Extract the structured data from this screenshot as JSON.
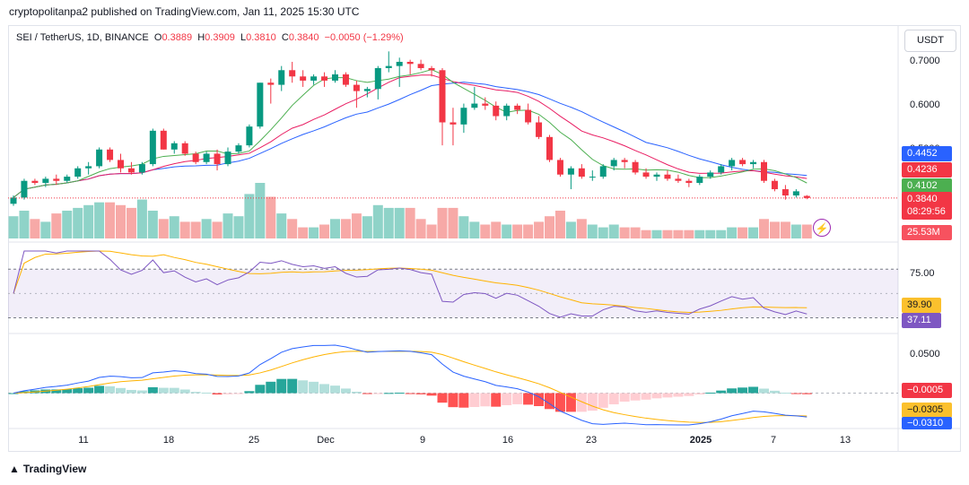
{
  "publisher": "cryptopolitanpa2 published on TradingView.com, Jan 11, 2025 15:30 UTC",
  "legend": {
    "symbol": "SEI / TetherUS, 1D, BINANCE",
    "open_label": "O",
    "open": "0.3889",
    "high_label": "H",
    "high": "0.3909",
    "low_label": "L",
    "low": "0.3810",
    "close_label": "C",
    "close": "0.3840",
    "change": "−0.0050 (−1.29%)"
  },
  "currency": "USDT",
  "price_ticks": [
    "0.7000",
    "0.6000",
    "0.5000"
  ],
  "badges": {
    "ma1": "0.4452",
    "ma2": "0.4236",
    "ma3": "0.4102",
    "last_price": "0.3840",
    "countdown": "08:29:56",
    "volume": "25.53M",
    "rsi_top": "75.00",
    "rsi_ma": "39.90",
    "rsi": "37.11",
    "macd_top": "0.0500",
    "hist": "−0.0005",
    "signal": "−0.0305",
    "macd": "−0.0310"
  },
  "x_ticks": [
    "11",
    "18",
    "25",
    "Dec",
    "9",
    "16",
    "23",
    "2025",
    "7",
    "13"
  ],
  "footer": "TradingView",
  "icons": {
    "flash": "lightning-icon",
    "logo": "tradingview-logo-icon"
  },
  "colors": {
    "up": "#089981",
    "down": "#f23645",
    "ma_blue": "#2962ff",
    "ma_red": "#e91e63",
    "ma_green": "#4caf50",
    "rsi": "#7e57c2",
    "signal": "#ffb300"
  },
  "chart_data": {
    "type": "candlestick",
    "symbol": "SEI / TetherUS",
    "interval": "1D",
    "candles": [
      [
        0.37,
        0.39,
        0.365,
        0.385
      ],
      [
        0.385,
        0.43,
        0.38,
        0.425
      ],
      [
        0.425,
        0.43,
        0.415,
        0.42
      ],
      [
        0.42,
        0.435,
        0.41,
        0.43
      ],
      [
        0.43,
        0.44,
        0.415,
        0.425
      ],
      [
        0.425,
        0.44,
        0.42,
        0.435
      ],
      [
        0.435,
        0.46,
        0.43,
        0.455
      ],
      [
        0.455,
        0.47,
        0.44,
        0.46
      ],
      [
        0.46,
        0.505,
        0.455,
        0.5
      ],
      [
        0.5,
        0.505,
        0.47,
        0.475
      ],
      [
        0.475,
        0.49,
        0.445,
        0.455
      ],
      [
        0.455,
        0.47,
        0.44,
        0.445
      ],
      [
        0.445,
        0.47,
        0.44,
        0.465
      ],
      [
        0.465,
        0.55,
        0.46,
        0.545
      ],
      [
        0.545,
        0.55,
        0.5,
        0.5
      ],
      [
        0.5,
        0.52,
        0.49,
        0.515
      ],
      [
        0.515,
        0.52,
        0.485,
        0.49
      ],
      [
        0.49,
        0.495,
        0.465,
        0.47
      ],
      [
        0.47,
        0.495,
        0.465,
        0.49
      ],
      [
        0.49,
        0.5,
        0.45,
        0.465
      ],
      [
        0.465,
        0.505,
        0.46,
        0.495
      ],
      [
        0.495,
        0.515,
        0.49,
        0.51
      ],
      [
        0.51,
        0.56,
        0.505,
        0.555
      ],
      [
        0.555,
        0.66,
        0.55,
        0.66
      ],
      [
        0.66,
        0.67,
        0.61,
        0.655
      ],
      [
        0.655,
        0.7,
        0.64,
        0.69
      ],
      [
        0.69,
        0.71,
        0.66,
        0.675
      ],
      [
        0.675,
        0.69,
        0.65,
        0.665
      ],
      [
        0.665,
        0.68,
        0.655,
        0.675
      ],
      [
        0.675,
        0.685,
        0.65,
        0.665
      ],
      [
        0.665,
        0.69,
        0.66,
        0.68
      ],
      [
        0.68,
        0.685,
        0.65,
        0.655
      ],
      [
        0.655,
        0.665,
        0.6,
        0.64
      ],
      [
        0.64,
        0.65,
        0.625,
        0.645
      ],
      [
        0.645,
        0.7,
        0.62,
        0.695
      ],
      [
        0.695,
        0.735,
        0.685,
        0.7
      ],
      [
        0.7,
        0.72,
        0.65,
        0.71
      ],
      [
        0.71,
        0.715,
        0.68,
        0.705
      ],
      [
        0.705,
        0.715,
        0.69,
        0.695
      ],
      [
        0.695,
        0.7,
        0.675,
        0.69
      ],
      [
        0.69,
        0.695,
        0.51,
        0.565
      ],
      [
        0.565,
        0.6,
        0.51,
        0.56
      ],
      [
        0.56,
        0.61,
        0.54,
        0.6
      ],
      [
        0.6,
        0.65,
        0.595,
        0.61
      ],
      [
        0.61,
        0.625,
        0.595,
        0.605
      ],
      [
        0.605,
        0.615,
        0.57,
        0.58
      ],
      [
        0.58,
        0.61,
        0.57,
        0.605
      ],
      [
        0.605,
        0.61,
        0.585,
        0.595
      ],
      [
        0.595,
        0.61,
        0.56,
        0.565
      ],
      [
        0.565,
        0.58,
        0.525,
        0.53
      ],
      [
        0.53,
        0.535,
        0.47,
        0.475
      ],
      [
        0.475,
        0.48,
        0.435,
        0.44
      ],
      [
        0.44,
        0.46,
        0.405,
        0.455
      ],
      [
        0.455,
        0.465,
        0.43,
        0.435
      ],
      [
        0.435,
        0.45,
        0.425,
        0.435
      ],
      [
        0.435,
        0.465,
        0.43,
        0.46
      ],
      [
        0.46,
        0.48,
        0.45,
        0.475
      ],
      [
        0.475,
        0.48,
        0.455,
        0.47
      ],
      [
        0.47,
        0.475,
        0.44,
        0.445
      ],
      [
        0.445,
        0.455,
        0.43,
        0.435
      ],
      [
        0.435,
        0.445,
        0.425,
        0.44
      ],
      [
        0.44,
        0.45,
        0.425,
        0.43
      ],
      [
        0.43,
        0.44,
        0.42,
        0.425
      ],
      [
        0.425,
        0.43,
        0.41,
        0.42
      ],
      [
        0.42,
        0.44,
        0.415,
        0.435
      ],
      [
        0.435,
        0.45,
        0.43,
        0.445
      ],
      [
        0.445,
        0.465,
        0.44,
        0.46
      ],
      [
        0.46,
        0.48,
        0.45,
        0.475
      ],
      [
        0.475,
        0.48,
        0.46,
        0.465
      ],
      [
        0.465,
        0.475,
        0.455,
        0.47
      ],
      [
        0.47,
        0.475,
        0.42,
        0.425
      ],
      [
        0.425,
        0.43,
        0.4,
        0.405
      ],
      [
        0.405,
        0.415,
        0.38,
        0.39
      ],
      [
        0.39,
        0.405,
        0.385,
        0.4
      ],
      [
        0.3889,
        0.3909,
        0.381,
        0.384
      ]
    ],
    "volume": [
      0.4,
      0.5,
      0.35,
      0.3,
      0.45,
      0.5,
      0.55,
      0.6,
      0.65,
      0.65,
      0.6,
      0.55,
      0.7,
      0.5,
      0.35,
      0.4,
      0.3,
      0.3,
      0.35,
      0.3,
      0.45,
      0.4,
      0.8,
      1.0,
      0.75,
      0.45,
      0.35,
      0.2,
      0.2,
      0.25,
      0.35,
      0.35,
      0.45,
      0.4,
      0.6,
      0.55,
      0.55,
      0.55,
      0.35,
      0.25,
      0.55,
      0.55,
      0.4,
      0.3,
      0.25,
      0.3,
      0.25,
      0.25,
      0.25,
      0.3,
      0.4,
      0.5,
      0.3,
      0.35,
      0.25,
      0.2,
      0.25,
      0.2,
      0.2,
      0.15,
      0.15,
      0.15,
      0.15,
      0.15,
      0.15,
      0.15,
      0.15,
      0.2,
      0.2,
      0.2,
      0.35,
      0.3,
      0.3,
      0.25,
      0.25
    ],
    "price_range": [
      0.36,
      0.74
    ],
    "rsi_range": [
      20,
      85
    ],
    "rsi_levels": [
      30,
      70
    ],
    "macd_range": [
      -0.04,
      0.07
    ]
  }
}
